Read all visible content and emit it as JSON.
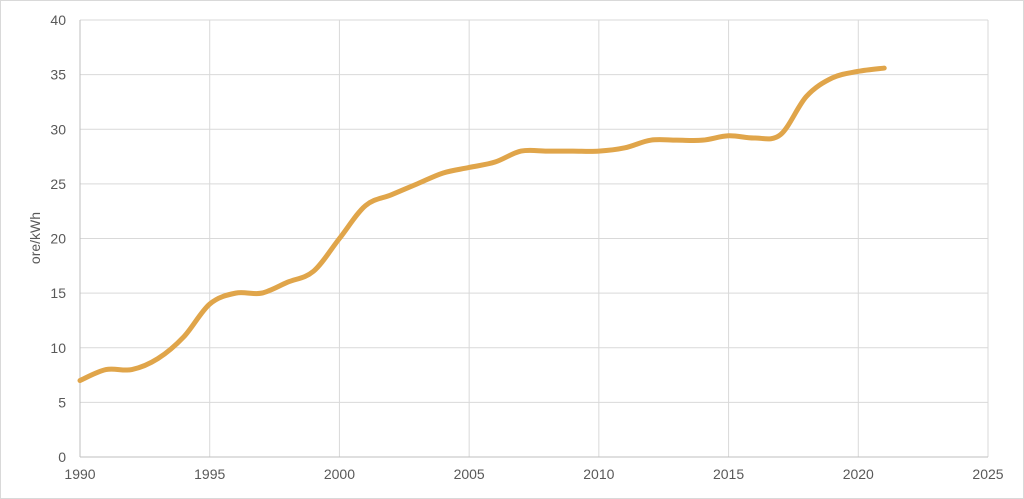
{
  "chart_data": {
    "type": "line",
    "title": "",
    "xlabel": "",
    "ylabel": "ore/kWh",
    "xlim": [
      1990,
      2025
    ],
    "ylim": [
      0,
      40
    ],
    "x_ticks": [
      "1990",
      "1995",
      "2000",
      "2005",
      "2010",
      "2015",
      "2020",
      "2025"
    ],
    "y_ticks": [
      "0",
      "5",
      "10",
      "15",
      "20",
      "25",
      "30",
      "35",
      "40"
    ],
    "grid": true,
    "legend": "none",
    "colors": {
      "line": "#E0A54A",
      "grid": "#d9d9d9",
      "axis": "#bfbfbf",
      "text": "#595959"
    },
    "series": [
      {
        "x": [
          1990,
          1991,
          1992,
          1993,
          1994,
          1995,
          1996,
          1997,
          1998,
          1999,
          2000,
          2001,
          2002,
          2003,
          2004,
          2005,
          2006,
          2007,
          2008,
          2009,
          2010,
          2011,
          2012,
          2013,
          2014,
          2015,
          2016,
          2017,
          2018,
          2019,
          2020,
          2021
        ],
        "values": [
          7.0,
          8.0,
          8.0,
          9.0,
          11.0,
          14.0,
          15.0,
          15.0,
          16.0,
          17.0,
          20.0,
          23.0,
          24.0,
          25.0,
          26.0,
          26.5,
          27.0,
          28.0,
          28.0,
          28.0,
          28.0,
          28.3,
          29.0,
          29.0,
          29.0,
          29.4,
          29.2,
          29.5,
          33.0,
          34.7,
          35.3,
          35.6
        ]
      }
    ]
  }
}
